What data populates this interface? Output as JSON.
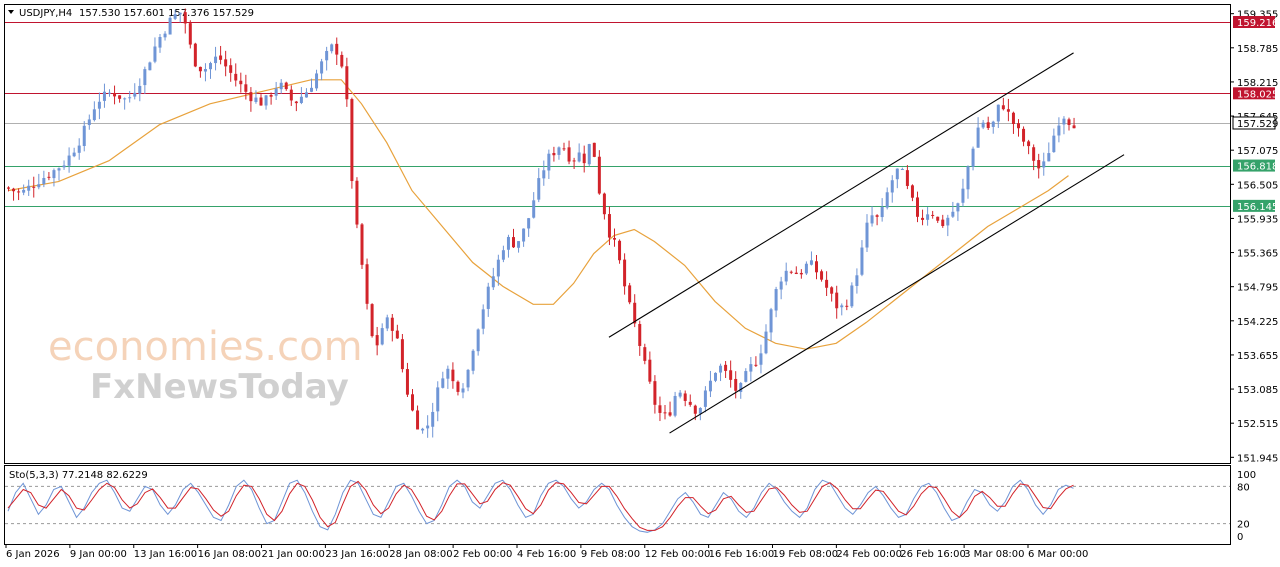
{
  "header": {
    "symbol": "USDJPY,H4",
    "ohlc": "157.530 157.601 157.376 157.529"
  },
  "watermark": {
    "line1": "economies.com",
    "line2": "FxNewsToday"
  },
  "colors": {
    "bull": "#6f95d6",
    "bear": "#d2232a",
    "ma": "#e8a23c",
    "resistance": "#c0142f",
    "support": "#35a26a",
    "channel": "#000000",
    "stoch_main": "#6f95d6",
    "stoch_signal": "#d2232a"
  },
  "chart_data": {
    "type": "line",
    "title": "USDJPY,H4",
    "price_axis": {
      "ylim": [
        151.85,
        159.5
      ],
      "ticks": [
        "159.355",
        "158.785",
        "158.215",
        "157.645",
        "157.075",
        "156.505",
        "155.935",
        "155.365",
        "154.795",
        "154.225",
        "153.655",
        "153.085",
        "152.515",
        "151.945"
      ]
    },
    "current_price": 157.529,
    "horizontal_levels": [
      {
        "label": "159.216",
        "value": 159.216,
        "role": "resistance"
      },
      {
        "label": "158.025",
        "value": 158.025,
        "role": "resistance"
      },
      {
        "label": "156.818",
        "value": 156.818,
        "role": "support"
      },
      {
        "label": "156.145",
        "value": 156.145,
        "role": "support"
      }
    ],
    "time_labels": [
      "6 Jan 2026",
      "9 Jan 00:00",
      "13 Jan 16:00",
      "16 Jan 08:00",
      "21 Jan 00:00",
      "23 Jan 16:00",
      "28 Jan 08:00",
      "2 Feb 00:00",
      "4 Feb 16:00",
      "9 Feb 08:00",
      "12 Feb 00:00",
      "16 Feb 16:00",
      "19 Feb 08:00",
      "24 Feb 00:00",
      "26 Feb 16:00",
      "3 Mar 08:00",
      "6 Mar 00:00"
    ],
    "price_path": [
      [
        0,
        156.45
      ],
      [
        3,
        156.35
      ],
      [
        6,
        156.55
      ],
      [
        9,
        156.7
      ],
      [
        12,
        156.9
      ],
      [
        15,
        157.3
      ],
      [
        18,
        157.9
      ],
      [
        21,
        158.05
      ],
      [
        24,
        157.9
      ],
      [
        27,
        158.3
      ],
      [
        30,
        158.9
      ],
      [
        33,
        159.3
      ],
      [
        35,
        159.4
      ],
      [
        37,
        158.6
      ],
      [
        39,
        158.4
      ],
      [
        42,
        158.65
      ],
      [
        45,
        158.3
      ],
      [
        48,
        158.0
      ],
      [
        51,
        157.85
      ],
      [
        54,
        158.2
      ],
      [
        57,
        157.85
      ],
      [
        60,
        158.1
      ],
      [
        63,
        158.6
      ],
      [
        65,
        158.85
      ],
      [
        67,
        158.4
      ],
      [
        68,
        157.3
      ],
      [
        69,
        155.9
      ],
      [
        70,
        155.6
      ],
      [
        71,
        154.7
      ],
      [
        73,
        153.7
      ],
      [
        75,
        154.25
      ],
      [
        77,
        154.1
      ],
      [
        79,
        153.2
      ],
      [
        81,
        152.55
      ],
      [
        83,
        152.35
      ],
      [
        85,
        152.9
      ],
      [
        87,
        153.5
      ],
      [
        89,
        153.1
      ],
      [
        91,
        153.2
      ],
      [
        93,
        154.0
      ],
      [
        95,
        154.6
      ],
      [
        97,
        155.1
      ],
      [
        99,
        155.6
      ],
      [
        101,
        155.5
      ],
      [
        103,
        155.8
      ],
      [
        105,
        156.4
      ],
      [
        107,
        156.9
      ],
      [
        110,
        157.2
      ],
      [
        112,
        156.9
      ],
      [
        114,
        157.05
      ],
      [
        115,
        156.8
      ],
      [
        116,
        157.5
      ],
      [
        117,
        156.5
      ],
      [
        118,
        156.3
      ],
      [
        119,
        155.8
      ],
      [
        121,
        155.4
      ],
      [
        123,
        154.6
      ],
      [
        125,
        154.0
      ],
      [
        127,
        153.3
      ],
      [
        129,
        152.7
      ],
      [
        131,
        152.6
      ],
      [
        133,
        153.1
      ],
      [
        135,
        152.9
      ],
      [
        137,
        152.7
      ],
      [
        139,
        153.1
      ],
      [
        141,
        153.5
      ],
      [
        143,
        153.3
      ],
      [
        145,
        153.0
      ],
      [
        147,
        153.4
      ],
      [
        149,
        153.6
      ],
      [
        151,
        154.2
      ],
      [
        153,
        154.9
      ],
      [
        155,
        155.1
      ],
      [
        157,
        155.0
      ],
      [
        159,
        155.2
      ],
      [
        161,
        155.0
      ],
      [
        163,
        154.7
      ],
      [
        165,
        154.4
      ],
      [
        167,
        154.6
      ],
      [
        169,
        155.2
      ],
      [
        171,
        156.0
      ],
      [
        173,
        155.9
      ],
      [
        175,
        156.5
      ],
      [
        177,
        156.8
      ],
      [
        179,
        156.3
      ],
      [
        181,
        155.9
      ],
      [
        183,
        156.1
      ],
      [
        185,
        155.8
      ],
      [
        187,
        156.0
      ],
      [
        189,
        156.2
      ],
      [
        191,
        157.0
      ],
      [
        193,
        157.6
      ],
      [
        195,
        157.4
      ],
      [
        197,
        157.9
      ],
      [
        199,
        157.6
      ],
      [
        201,
        157.3
      ],
      [
        203,
        157.0
      ],
      [
        205,
        156.7
      ],
      [
        207,
        157.2
      ],
      [
        209,
        157.7
      ],
      [
        211,
        157.53
      ]
    ],
    "moving_average": [
      [
        0,
        156.4
      ],
      [
        10,
        156.55
      ],
      [
        20,
        156.9
      ],
      [
        30,
        157.5
      ],
      [
        40,
        157.85
      ],
      [
        50,
        158.05
      ],
      [
        60,
        158.25
      ],
      [
        66,
        158.25
      ],
      [
        70,
        157.85
      ],
      [
        75,
        157.2
      ],
      [
        80,
        156.4
      ],
      [
        86,
        155.8
      ],
      [
        92,
        155.2
      ],
      [
        98,
        154.8
      ],
      [
        104,
        154.5
      ],
      [
        108,
        154.5
      ],
      [
        112,
        154.85
      ],
      [
        116,
        155.35
      ],
      [
        120,
        155.65
      ],
      [
        124,
        155.75
      ],
      [
        128,
        155.55
      ],
      [
        134,
        155.15
      ],
      [
        140,
        154.55
      ],
      [
        146,
        154.1
      ],
      [
        152,
        153.85
      ],
      [
        158,
        153.75
      ],
      [
        164,
        153.85
      ],
      [
        170,
        154.2
      ],
      [
        176,
        154.6
      ],
      [
        182,
        155.0
      ],
      [
        188,
        155.4
      ],
      [
        194,
        155.8
      ],
      [
        200,
        156.1
      ],
      [
        206,
        156.4
      ],
      [
        210,
        156.65
      ]
    ],
    "channel": {
      "upper": [
        [
          119,
          153.95
        ],
        [
          211,
          158.7
        ]
      ],
      "lower": [
        [
          131,
          152.35
        ],
        [
          221,
          157.0
        ]
      ]
    },
    "stochastic": {
      "label": "Sto(5,3,3) 77.2148 82.6229",
      "main": 77.2148,
      "signal": 82.6229,
      "ylim": [
        0,
        100
      ],
      "levels": [
        20,
        80
      ],
      "ticks": [
        "100",
        "80",
        "20",
        "0"
      ],
      "main_values": [
        40,
        70,
        85,
        60,
        35,
        50,
        75,
        80,
        55,
        30,
        45,
        70,
        85,
        90,
        70,
        45,
        40,
        60,
        80,
        75,
        50,
        35,
        50,
        75,
        85,
        70,
        50,
        30,
        25,
        50,
        80,
        90,
        75,
        45,
        20,
        25,
        55,
        85,
        90,
        70,
        40,
        15,
        10,
        35,
        70,
        90,
        85,
        60,
        35,
        30,
        55,
        80,
        85,
        65,
        40,
        20,
        25,
        50,
        80,
        90,
        80,
        55,
        45,
        65,
        85,
        90,
        75,
        50,
        30,
        35,
        65,
        85,
        90,
        80,
        60,
        45,
        55,
        75,
        85,
        75,
        50,
        30,
        15,
        8,
        6,
        10,
        20,
        40,
        60,
        70,
        55,
        35,
        30,
        50,
        70,
        60,
        40,
        30,
        45,
        70,
        85,
        75,
        55,
        40,
        30,
        45,
        75,
        90,
        85,
        65,
        45,
        35,
        50,
        70,
        80,
        65,
        45,
        30,
        35,
        60,
        80,
        85,
        70,
        45,
        25,
        30,
        55,
        75,
        70,
        50,
        40,
        55,
        80,
        90,
        75,
        50,
        35,
        50,
        75,
        82,
        77
      ],
      "signal_values": [
        45,
        60,
        75,
        70,
        50,
        45,
        60,
        75,
        65,
        45,
        42,
        58,
        75,
        85,
        78,
        58,
        45,
        52,
        70,
        76,
        62,
        45,
        45,
        62,
        78,
        76,
        60,
        42,
        32,
        40,
        65,
        82,
        80,
        60,
        35,
        25,
        40,
        68,
        85,
        80,
        58,
        30,
        15,
        22,
        52,
        80,
        88,
        74,
        50,
        36,
        45,
        68,
        82,
        75,
        55,
        32,
        26,
        40,
        65,
        84,
        84,
        68,
        52,
        56,
        75,
        86,
        82,
        64,
        44,
        36,
        50,
        74,
        86,
        84,
        70,
        54,
        52,
        66,
        80,
        80,
        64,
        44,
        28,
        14,
        9,
        9,
        15,
        30,
        48,
        62,
        62,
        48,
        36,
        42,
        60,
        64,
        50,
        38,
        40,
        58,
        76,
        78,
        66,
        50,
        38,
        40,
        60,
        80,
        86,
        76,
        58,
        44,
        44,
        60,
        74,
        72,
        56,
        40,
        34,
        48,
        68,
        80,
        78,
        60,
        40,
        30,
        42,
        64,
        72,
        62,
        48,
        48,
        68,
        84,
        82,
        64,
        46,
        44,
        62,
        76,
        82
      ]
    }
  }
}
